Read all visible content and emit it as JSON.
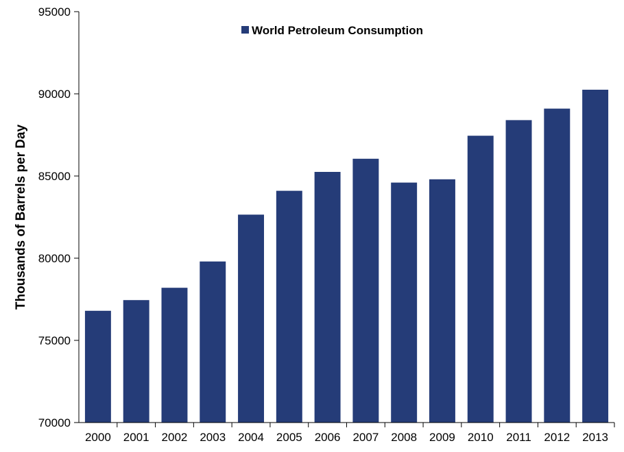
{
  "chart_data": {
    "type": "bar",
    "categories": [
      "2000",
      "2001",
      "2002",
      "2003",
      "2004",
      "2005",
      "2006",
      "2007",
      "2008",
      "2009",
      "2010",
      "2011",
      "2012",
      "2013"
    ],
    "series": [
      {
        "name": "World Petroleum Consumption",
        "color": "#253C78",
        "values": [
          76800,
          77450,
          78200,
          79800,
          82650,
          84100,
          85250,
          86050,
          84600,
          84800,
          87450,
          88400,
          89100,
          90250
        ]
      }
    ],
    "ylabel": "Thousands of Barrels per Day",
    "xlabel": "",
    "ylim": [
      70000,
      95000
    ],
    "yticks": [
      70000,
      75000,
      80000,
      85000,
      90000,
      95000
    ],
    "grid": false,
    "legend": "top-center"
  }
}
